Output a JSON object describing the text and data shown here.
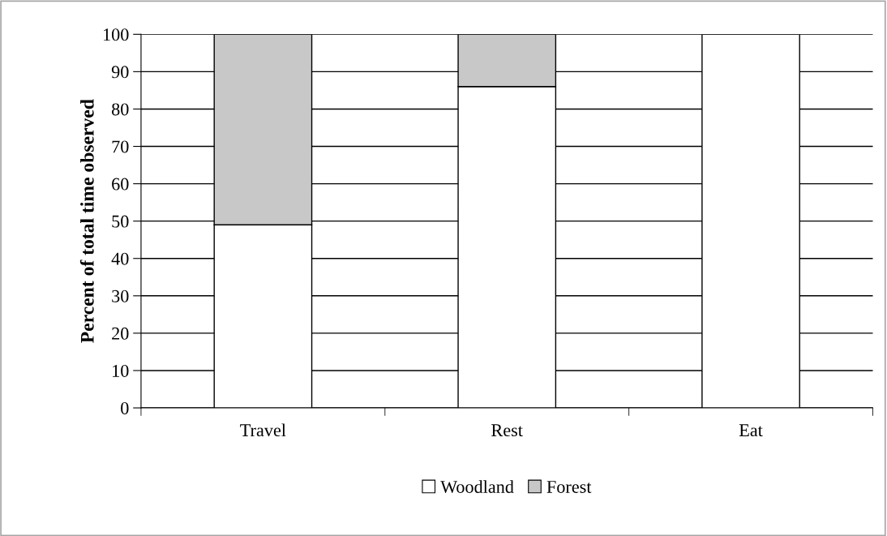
{
  "chart_data": {
    "type": "bar",
    "stacked": true,
    "ylabel": "Percent of total time observed",
    "categories": [
      "Travel",
      "Rest",
      "Eat"
    ],
    "series": [
      {
        "name": "Woodland",
        "color": "#ffffff",
        "values": [
          49,
          86,
          100
        ]
      },
      {
        "name": "Forest",
        "color": "#c8c8c8",
        "values": [
          51,
          14,
          null
        ]
      }
    ],
    "ylim": [
      0,
      100
    ],
    "yticks": [
      0,
      10,
      20,
      30,
      40,
      50,
      60,
      70,
      80,
      90,
      100
    ],
    "grid": "y",
    "legend": "bottom"
  }
}
